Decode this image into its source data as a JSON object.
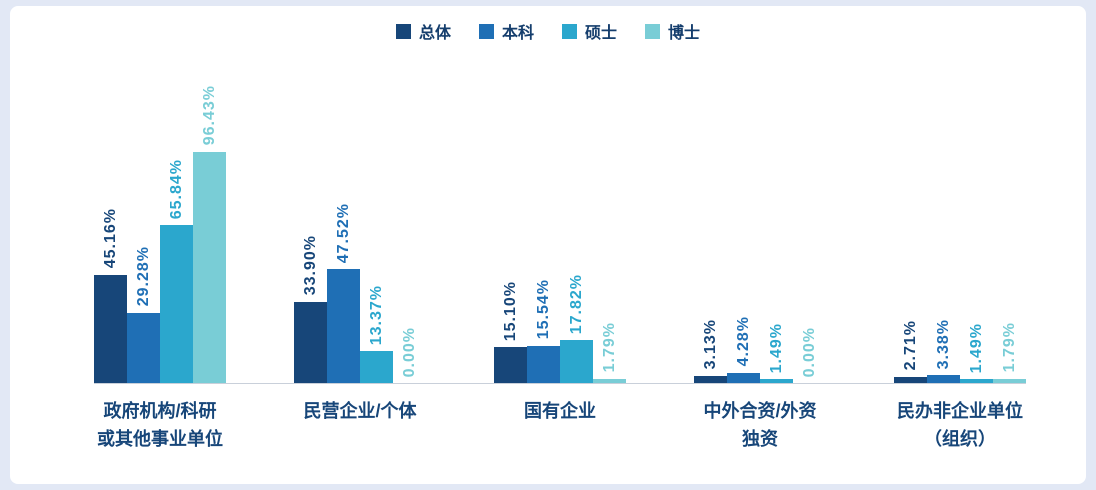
{
  "background": "#e2e8f5",
  "card_background": "#ffffff",
  "axis": {
    "line_color": "#c9d0da",
    "label_color": "#174679"
  },
  "legend": {
    "position": "top",
    "text_color": "#153e6d"
  },
  "chart_data": {
    "type": "bar",
    "title": "",
    "xlabel": "",
    "ylabel": "",
    "ylim": [
      0,
      100
    ],
    "grid": false,
    "value_label_format": "0.00%",
    "value_labels_rotated": 90,
    "categories": [
      "政府机构/科研\n或其他事业单位",
      "民营企业/个体",
      "国有企业",
      "中外合资/外资\n独资",
      "民办非企业单位\n（组织）"
    ],
    "series": [
      {
        "name": "总体",
        "color": "#174679",
        "values": [
          45.16,
          33.9,
          15.1,
          3.13,
          2.71
        ],
        "labels": [
          "45.16%",
          "33.90%",
          "15.10%",
          "3.13%",
          "2.71%"
        ]
      },
      {
        "name": "本科",
        "color": "#1f6fb5",
        "values": [
          29.28,
          47.52,
          15.54,
          4.28,
          3.38
        ],
        "labels": [
          "29.28%",
          "47.52%",
          "15.54%",
          "4.28%",
          "3.38%"
        ]
      },
      {
        "name": "硕士",
        "color": "#2ba7cd",
        "values": [
          65.84,
          13.37,
          17.82,
          1.49,
          1.49
        ],
        "labels": [
          "65.84%",
          "13.37%",
          "17.82%",
          "1.49%",
          "1.49%"
        ]
      },
      {
        "name": "博士",
        "color": "#79cdd6",
        "values": [
          96.43,
          0.0,
          1.79,
          0.0,
          1.79
        ],
        "labels": [
          "96.43%",
          "0.00%",
          "1.79%",
          "0.00%",
          "1.79%"
        ]
      }
    ]
  }
}
